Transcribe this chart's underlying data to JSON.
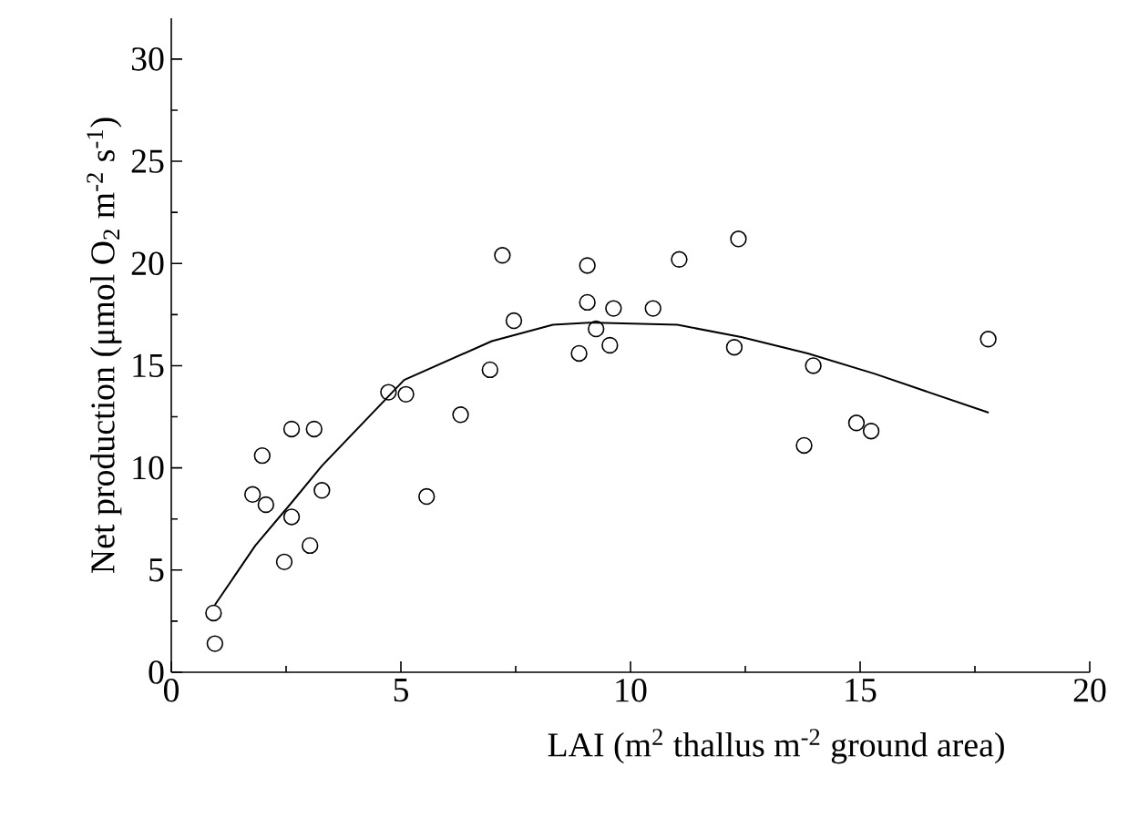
{
  "chart_data": {
    "type": "scatter",
    "xlabel": "LAI (m$^{2}$ thallus m$^{-2}$ ground area)",
    "ylabel": "Net production (μmol O$_{2}$ m$^{-2}$ s$^{-1}$)",
    "xlim": [
      0,
      20
    ],
    "ylim": [
      0,
      32
    ],
    "xticks": [
      0,
      5,
      10,
      15,
      20
    ],
    "yticks": [
      0,
      5,
      10,
      15,
      20,
      25,
      30
    ],
    "marker": "circle",
    "series": [
      {
        "color": "#000000",
        "x": [
          0.92,
          0.95,
          1.77,
          2.06,
          1.98,
          2.62,
          2.62,
          2.46,
          3.02,
          3.11,
          3.28,
          4.73,
          5.11,
          5.56,
          6.3,
          6.94,
          7.21,
          7.46,
          8.88,
          9.06,
          9.06,
          9.25,
          9.55,
          9.63,
          11.06,
          10.49,
          12.35,
          12.26,
          13.98,
          13.78,
          14.92,
          15.24,
          17.79
        ],
        "values": [
          2.9,
          1.4,
          8.7,
          8.2,
          10.6,
          11.9,
          7.6,
          5.4,
          6.2,
          11.9,
          8.9,
          13.7,
          13.6,
          8.6,
          12.6,
          14.8,
          20.4,
          17.2,
          15.6,
          19.9,
          18.1,
          16.8,
          16.0,
          17.8,
          20.2,
          17.8,
          21.2,
          15.9,
          15.0,
          11.1,
          12.2,
          11.8,
          16.3
        ]
      },
      {
        "type": "line",
        "color": "#000000",
        "marker": "none",
        "x": [
          0.95,
          1.83,
          2.62,
          3.28,
          5.07,
          6.98,
          8.31,
          9.1,
          9.23,
          11.02,
          12.41,
          13.86,
          15.32,
          17.8
        ],
        "values": [
          3.3,
          6.2,
          8.3,
          10.1,
          14.3,
          16.2,
          17.0,
          17.1,
          17.1,
          17.0,
          16.4,
          15.6,
          14.6,
          12.7
        ]
      }
    ]
  }
}
